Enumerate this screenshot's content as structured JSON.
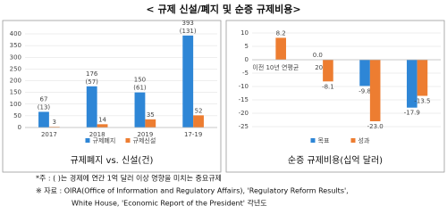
{
  "title": "< 규제 신설/폐지 및 순증 규제비용>",
  "chart_data": [
    {
      "type": "bar",
      "title": "규제폐지 vs. 신설(건)",
      "categories": [
        "2017",
        "2018",
        "2019",
        "17-19"
      ],
      "series": [
        {
          "name": "규제폐지",
          "color": "#2e86d6",
          "values": [
            67,
            176,
            150,
            393
          ]
        },
        {
          "name": "규제신설",
          "color": "#ed7d31",
          "values": [
            3,
            14,
            35,
            52
          ]
        }
      ],
      "annotations": [
        "(13)",
        "(57)",
        "(61)",
        "(131)"
      ],
      "ylim": [
        0,
        400
      ],
      "yticks": [
        0,
        50,
        100,
        150,
        200,
        250,
        300,
        350,
        400
      ],
      "grid": true
    },
    {
      "type": "bar",
      "title": "순증 규제비용(십억 달러)",
      "categories": [
        "이전 10년 연평균",
        "2017",
        "2018",
        "2019"
      ],
      "series": [
        {
          "name": "목표",
          "color": "#2e86d6",
          "values": [
            null,
            0,
            -9.8,
            -17.9
          ],
          "value_labels": [
            null,
            "0.0",
            "-9.8",
            "-17.9"
          ]
        },
        {
          "name": "성과",
          "color": "#ed7d31",
          "values": [
            8.2,
            -8.1,
            -23,
            -13.5
          ],
          "value_labels": [
            "8.2",
            "-8.1",
            "-23.0",
            "-13.5"
          ]
        }
      ],
      "ylim": [
        -25,
        10
      ],
      "yticks": [
        -25,
        -20,
        -15,
        -10,
        -5,
        0,
        5,
        10
      ],
      "grid": true
    }
  ],
  "notes": [
    "*주 : ( )는 경제에 연간 1억 달러 이상 영향을 미치는 중요규제",
    "※ 자료 : OIRA(Office of Information and Regulatory Affairs), 'Regulatory Reform Results',",
    "White House, 'Economic Report of the President' 각년도"
  ]
}
